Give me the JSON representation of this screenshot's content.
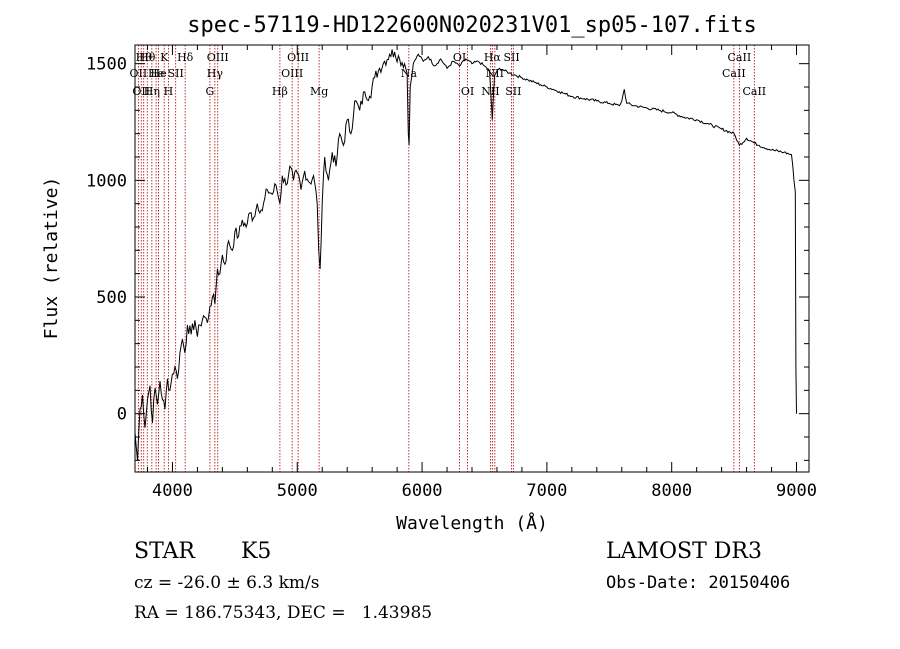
{
  "chart_data": {
    "type": "line",
    "title": "spec-57119-HD122600N020231V01_sp05-107.fits",
    "xlabel": "Wavelength (Å)",
    "ylabel": "Flux (relative)",
    "xlim": [
      3700,
      9100
    ],
    "ylim": [
      -250,
      1580
    ],
    "x_ticks": [
      4000,
      5000,
      6000,
      7000,
      8000,
      9000
    ],
    "y_ticks": [
      0,
      500,
      1000,
      1500
    ],
    "grid": false,
    "series": [
      {
        "points": [
          [
            3700,
            -80
          ],
          [
            3720,
            -200
          ],
          [
            3740,
            20
          ],
          [
            3760,
            80
          ],
          [
            3780,
            -60
          ],
          [
            3800,
            60
          ],
          [
            3820,
            120
          ],
          [
            3840,
            -40
          ],
          [
            3860,
            110
          ],
          [
            3880,
            40
          ],
          [
            3900,
            140
          ],
          [
            3920,
            60
          ],
          [
            3940,
            20
          ],
          [
            3960,
            150
          ],
          [
            3980,
            100
          ],
          [
            4000,
            170
          ],
          [
            4020,
            200
          ],
          [
            4040,
            150
          ],
          [
            4060,
            260
          ],
          [
            4080,
            320
          ],
          [
            4100,
            260
          ],
          [
            4120,
            380
          ],
          [
            4150,
            340
          ],
          [
            4180,
            400
          ],
          [
            4200,
            330
          ],
          [
            4220,
            380
          ],
          [
            4250,
            420
          ],
          [
            4280,
            390
          ],
          [
            4300,
            460
          ],
          [
            4320,
            500
          ],
          [
            4340,
            470
          ],
          [
            4360,
            620
          ],
          [
            4380,
            600
          ],
          [
            4400,
            680
          ],
          [
            4420,
            640
          ],
          [
            4450,
            740
          ],
          [
            4480,
            700
          ],
          [
            4500,
            780
          ],
          [
            4530,
            760
          ],
          [
            4560,
            830
          ],
          [
            4590,
            800
          ],
          [
            4620,
            860
          ],
          [
            4650,
            840
          ],
          [
            4680,
            900
          ],
          [
            4720,
            870
          ],
          [
            4760,
            960
          ],
          [
            4800,
            940
          ],
          [
            4830,
            980
          ],
          [
            4861,
            900
          ],
          [
            4880,
            1020
          ],
          [
            4910,
            980
          ],
          [
            4940,
            1060
          ],
          [
            4970,
            1000
          ],
          [
            5000,
            1030
          ],
          [
            5030,
            960
          ],
          [
            5060,
            1040
          ],
          [
            5100,
            990
          ],
          [
            5130,
            1020
          ],
          [
            5160,
            900
          ],
          [
            5172,
            700
          ],
          [
            5183,
            620
          ],
          [
            5200,
            900
          ],
          [
            5220,
            1100
          ],
          [
            5250,
            1000
          ],
          [
            5280,
            1120
          ],
          [
            5310,
            1060
          ],
          [
            5340,
            1200
          ],
          [
            5370,
            1150
          ],
          [
            5400,
            1260
          ],
          [
            5430,
            1200
          ],
          [
            5460,
            1340
          ],
          [
            5500,
            1300
          ],
          [
            5540,
            1380
          ],
          [
            5580,
            1360
          ],
          [
            5620,
            1440
          ],
          [
            5660,
            1480
          ],
          [
            5700,
            1510
          ],
          [
            5740,
            1540
          ],
          [
            5780,
            1550
          ],
          [
            5820,
            1520
          ],
          [
            5860,
            1500
          ],
          [
            5880,
            1460
          ],
          [
            5890,
            1200
          ],
          [
            5896,
            1150
          ],
          [
            5905,
            1400
          ],
          [
            5930,
            1500
          ],
          [
            5970,
            1540
          ],
          [
            6010,
            1510
          ],
          [
            6050,
            1530
          ],
          [
            6100,
            1490
          ],
          [
            6150,
            1520
          ],
          [
            6200,
            1480
          ],
          [
            6250,
            1510
          ],
          [
            6300,
            1490
          ],
          [
            6350,
            1520
          ],
          [
            6400,
            1500
          ],
          [
            6450,
            1510
          ],
          [
            6500,
            1490
          ],
          [
            6540,
            1470
          ],
          [
            6563,
            1260
          ],
          [
            6580,
            1450
          ],
          [
            6620,
            1480
          ],
          [
            6660,
            1470
          ],
          [
            6700,
            1460
          ],
          [
            6750,
            1450
          ],
          [
            6800,
            1440
          ],
          [
            6850,
            1430
          ],
          [
            6900,
            1420
          ],
          [
            6950,
            1410
          ],
          [
            7000,
            1400
          ],
          [
            7050,
            1390
          ],
          [
            7100,
            1380
          ],
          [
            7150,
            1370
          ],
          [
            7200,
            1360
          ],
          [
            7300,
            1350
          ],
          [
            7400,
            1340
          ],
          [
            7500,
            1330
          ],
          [
            7580,
            1320
          ],
          [
            7600,
            1340
          ],
          [
            7620,
            1390
          ],
          [
            7640,
            1330
          ],
          [
            7700,
            1320
          ],
          [
            7800,
            1310
          ],
          [
            7900,
            1300
          ],
          [
            8000,
            1290
          ],
          [
            8100,
            1270
          ],
          [
            8200,
            1260
          ],
          [
            8300,
            1240
          ],
          [
            8400,
            1220
          ],
          [
            8500,
            1200
          ],
          [
            8542,
            1150
          ],
          [
            8600,
            1180
          ],
          [
            8662,
            1160
          ],
          [
            8700,
            1150
          ],
          [
            8800,
            1130
          ],
          [
            8900,
            1120
          ],
          [
            8960,
            1110
          ],
          [
            8990,
            950
          ],
          [
            8995,
            200
          ],
          [
            9000,
            0
          ]
        ]
      }
    ],
    "line_labels": [
      {
        "wl": 3727,
        "text": "OII",
        "row": 2
      },
      {
        "wl": 3750,
        "text": "OII",
        "row": 3
      },
      {
        "wl": 3770,
        "text": "Hθ",
        "row": 1
      },
      {
        "wl": 3798,
        "text": "Hθ",
        "row": 1
      },
      {
        "wl": 3835,
        "text": "Hη",
        "row": 3
      },
      {
        "wl": 3869,
        "text": "He",
        "row": 2
      },
      {
        "wl": 3889,
        "text": "He",
        "row": 2
      },
      {
        "wl": 3934,
        "text": "K",
        "row": 1
      },
      {
        "wl": 3968,
        "text": "H",
        "row": 3
      },
      {
        "wl": 4026,
        "text": "SII",
        "row": 2
      },
      {
        "wl": 4102,
        "text": "Hδ",
        "row": 1
      },
      {
        "wl": 4300,
        "text": "G",
        "row": 3
      },
      {
        "wl": 4340,
        "text": "Hγ",
        "row": 2
      },
      {
        "wl": 4363,
        "text": "OIII",
        "row": 1
      },
      {
        "wl": 4861,
        "text": "Hβ",
        "row": 3
      },
      {
        "wl": 4959,
        "text": "OIII",
        "row": 2
      },
      {
        "wl": 5007,
        "text": "OIII",
        "row": 1
      },
      {
        "wl": 5175,
        "text": "Mg",
        "row": 3
      },
      {
        "wl": 5894,
        "text": "Na",
        "row": 2
      },
      {
        "wl": 6300,
        "text": "OI",
        "row": 1
      },
      {
        "wl": 6364,
        "text": "OI",
        "row": 3
      },
      {
        "wl": 6548,
        "text": "NII",
        "row": 3
      },
      {
        "wl": 6563,
        "text": "Hα",
        "row": 1
      },
      {
        "wl": 6583,
        "text": "NII",
        "row": 2
      },
      {
        "wl": 6717,
        "text": "SII",
        "row": 1
      },
      {
        "wl": 6731,
        "text": "SII",
        "row": 3
      },
      {
        "wl": 8498,
        "text": "CaII",
        "row": 2
      },
      {
        "wl": 8542,
        "text": "CaII",
        "row": 1
      },
      {
        "wl": 8662,
        "text": "CaII",
        "row": 3
      }
    ]
  },
  "info": {
    "object_type": "STAR",
    "subclass": "K5",
    "survey": "LAMOST DR3",
    "redshift": "cz = -26.0 ± 6.3 km/s",
    "obs_date": "Obs-Date: 20150406",
    "coords": "RA = 186.75343, DEC =   1.43985"
  },
  "colors": {
    "spectrum": "#000000",
    "line_markers": "#b30000",
    "axes": "#000000",
    "background": "#ffffff"
  }
}
